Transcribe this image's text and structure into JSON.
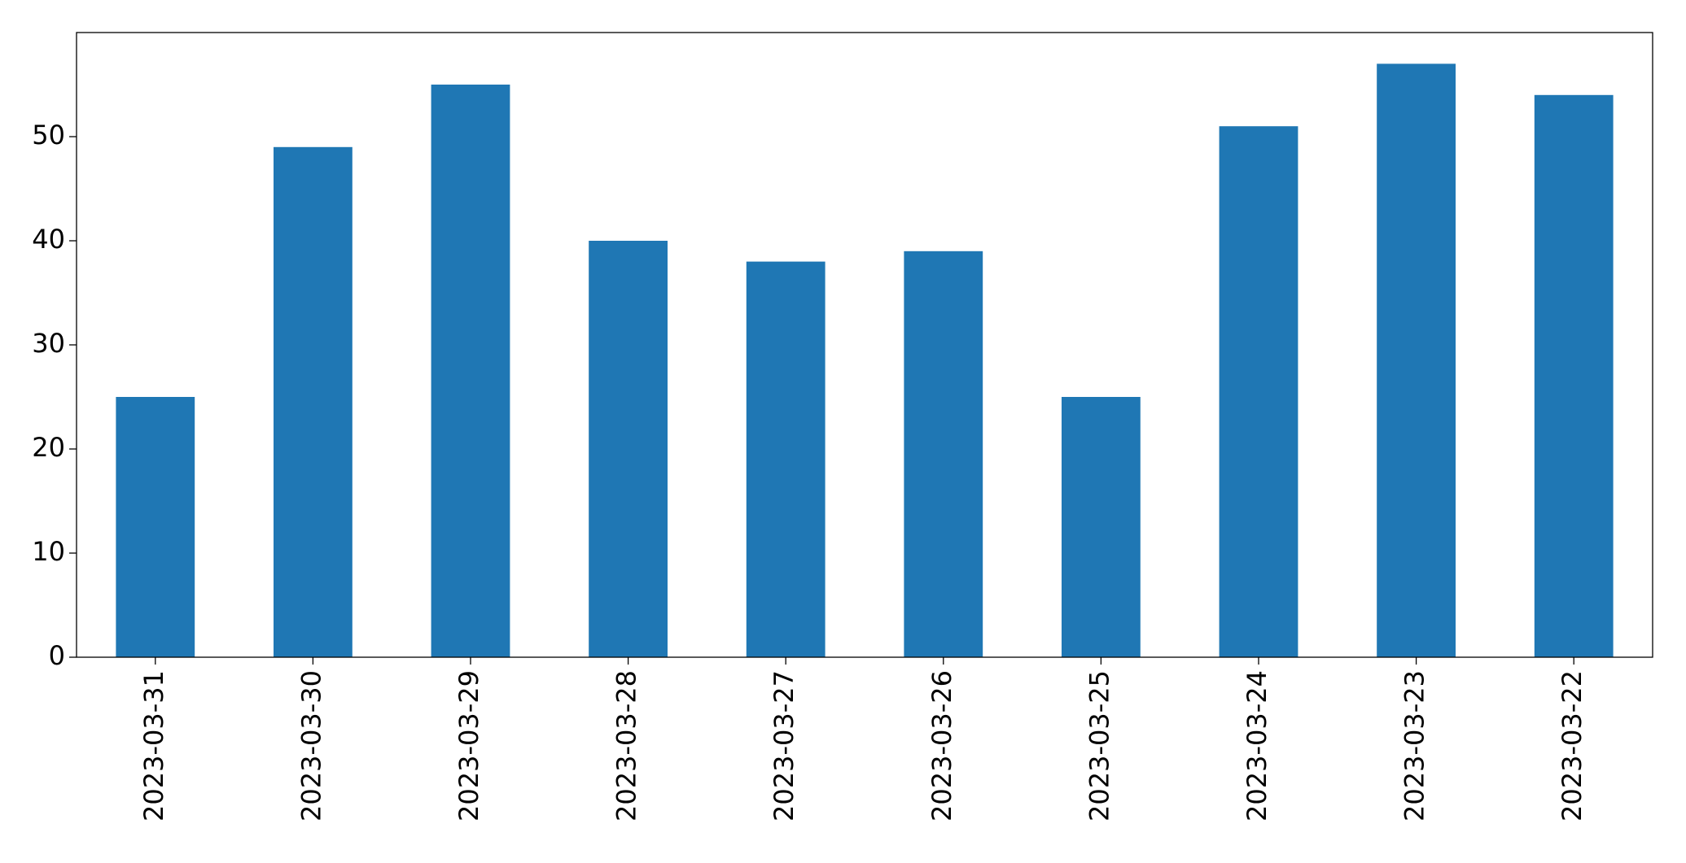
{
  "chart_data": {
    "type": "bar",
    "categories": [
      "2023-03-31",
      "2023-03-30",
      "2023-03-29",
      "2023-03-28",
      "2023-03-27",
      "2023-03-26",
      "2023-03-25",
      "2023-03-24",
      "2023-03-23",
      "2023-03-22"
    ],
    "values": [
      25,
      49,
      55,
      40,
      38,
      39,
      25,
      51,
      57,
      54
    ],
    "color": "#1f77b4",
    "ylim": [
      0,
      60
    ],
    "yticks": [
      0,
      10,
      20,
      30,
      40,
      50
    ],
    "grid": false
  }
}
